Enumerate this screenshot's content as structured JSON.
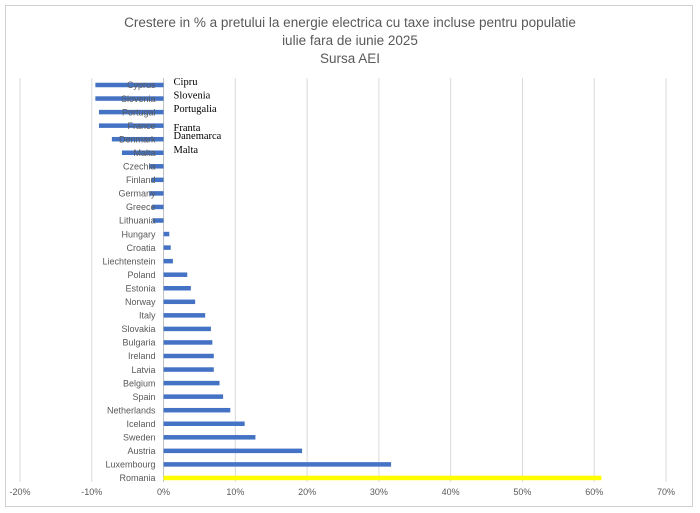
{
  "chart_data": {
    "type": "bar",
    "orientation": "horizontal",
    "title_lines": [
      "Crestere in % a pretului la energie electrica cu taxe incluse pentru populatie",
      "iulie fara de iunie 2025",
      "Sursa AEI"
    ],
    "xlabel": "",
    "ylabel": "",
    "xlim": [
      -0.2,
      0.7
    ],
    "x_ticks": [
      -0.2,
      -0.1,
      0,
      0.1,
      0.2,
      0.3,
      0.4,
      0.5,
      0.6,
      0.7
    ],
    "x_tick_labels": [
      "-20%",
      "-10%",
      "0%",
      "10%",
      "20%",
      "30%",
      "40%",
      "50%",
      "60%",
      "70%"
    ],
    "grid": "vertical",
    "categories": [
      "Cyprus",
      "Slovenia",
      "Portugal",
      "France",
      "Denmark",
      "Malta",
      "Czechia",
      "Finland",
      "Germany",
      "Greece",
      "Lithuania",
      "Hungary",
      "Croatia",
      "Liechtenstein",
      "Poland",
      "Estonia",
      "Norway",
      "Italy",
      "Slovakia",
      "Bulgaria",
      "Ireland",
      "Latvia",
      "Belgium",
      "Spain",
      "Netherlands",
      "Iceland",
      "Sweden",
      "Austria",
      "Luxembourg",
      "Romania"
    ],
    "values": [
      -0.095,
      -0.095,
      -0.09,
      -0.09,
      -0.072,
      -0.058,
      -0.02,
      -0.017,
      -0.02,
      -0.016,
      -0.015,
      0.008,
      0.01,
      0.013,
      0.033,
      0.038,
      0.044,
      0.058,
      0.066,
      0.068,
      0.07,
      0.07,
      0.078,
      0.083,
      0.093,
      0.113,
      0.128,
      0.193,
      0.317,
      0.61
    ],
    "highlight": "Romania",
    "colors": {
      "bar": "#4472c4",
      "highlight": "#ffff00",
      "grid": "#d9d9d9",
      "axis": "#bfbfbf",
      "text": "#595959"
    },
    "annotations": [
      {
        "category": "Cyprus",
        "text": "Cipru"
      },
      {
        "category": "Slovenia",
        "text": "Slovenia"
      },
      {
        "category": "Portugal",
        "text": "Portugalia"
      },
      {
        "category": "France",
        "text": "Franta"
      },
      {
        "category": "Denmark",
        "text": "Danemarca"
      },
      {
        "category": "Malta",
        "text": "Malta"
      }
    ]
  }
}
